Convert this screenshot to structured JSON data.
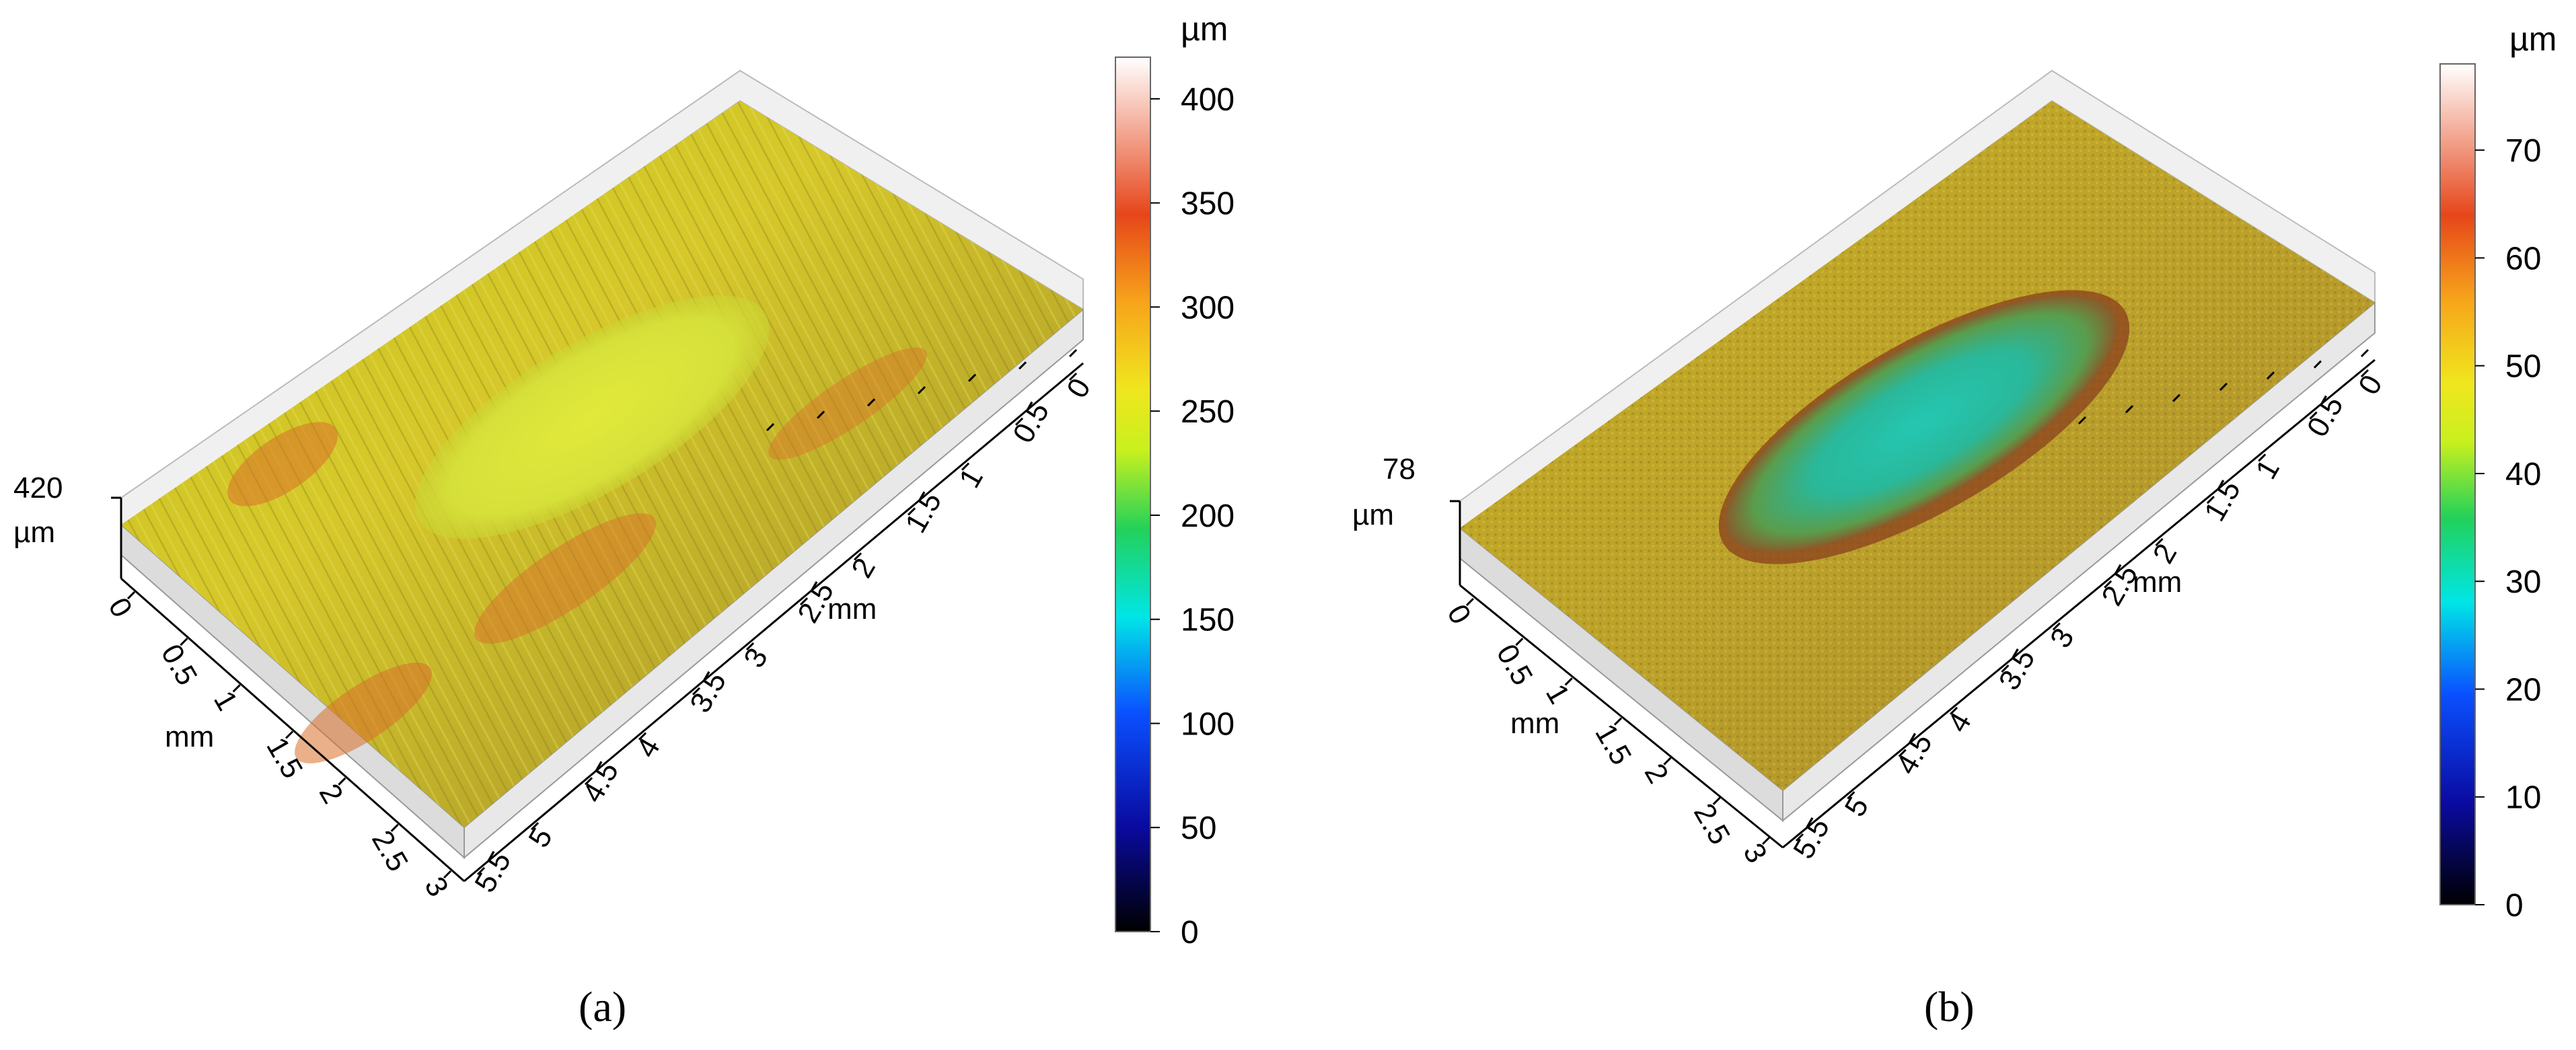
{
  "panels": [
    {
      "id": "a",
      "caption": "(a)",
      "z_max_label": "420",
      "z_zero_label": "0",
      "z_unit": "µm",
      "x_unit": "mm",
      "y_unit": "mm",
      "long_axis_ticks": [
        "0",
        "0.5",
        "1",
        "1.5",
        "2",
        "2.5",
        "3",
        "3.5",
        "4",
        "4.5",
        "5",
        "5.5"
      ],
      "short_axis_ticks_left": [
        "0",
        "0.5",
        "1",
        "1.5",
        "2",
        "2.5",
        "3"
      ],
      "short_axis_ticks_right": [
        "0",
        "0.5",
        "1",
        "1.5",
        "2",
        "2.5",
        "3"
      ],
      "colorbar": {
        "unit": "µm",
        "ticks": [
          "0",
          "50",
          "100",
          "150",
          "200",
          "250",
          "300",
          "350",
          "400"
        ],
        "min": 0,
        "max": 420
      }
    },
    {
      "id": "b",
      "caption": "(b)",
      "z_max_label": "78",
      "z_zero_label": "0",
      "z_unit": "µm",
      "x_unit": "mm",
      "y_unit": "mm",
      "long_axis_ticks": [
        "0",
        "0.5",
        "1",
        "1.5",
        "2",
        "2.5",
        "3",
        "3.5",
        "4",
        "4.5",
        "5",
        "5.5"
      ],
      "short_axis_ticks_left": [
        "0",
        "0.5",
        "1",
        "1.5",
        "2",
        "2.5",
        "3"
      ],
      "short_axis_ticks_right": [
        "0",
        "0.5",
        "1",
        "1.5",
        "2",
        "2.5",
        "3"
      ],
      "colorbar": {
        "unit": "µm",
        "ticks": [
          "0",
          "10",
          "20",
          "30",
          "40",
          "50",
          "60",
          "70"
        ],
        "min": 0,
        "max": 78
      }
    }
  ],
  "colormap": [
    "#000000",
    "#0a0aa0",
    "#0a50ff",
    "#00e6e6",
    "#22d15a",
    "#c8f01e",
    "#f0e61e",
    "#f7a41a",
    "#e6461a",
    "#ffffff"
  ]
}
